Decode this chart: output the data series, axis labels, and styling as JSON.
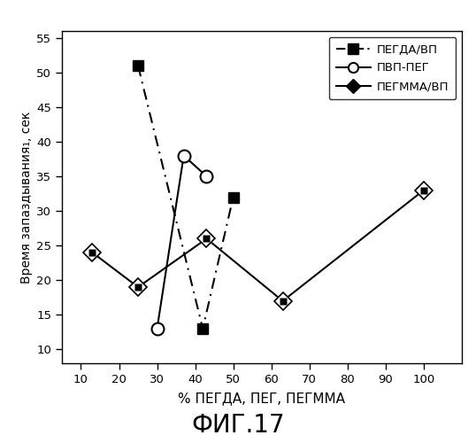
{
  "series": [
    {
      "label": "ПЕГДА/ВП",
      "x": [
        25,
        42,
        50
      ],
      "y": [
        51,
        13,
        32
      ],
      "color": "black",
      "linestyle": "--",
      "marker": "s",
      "markerfacecolor": "black",
      "markeredgecolor": "black",
      "markersize": 9
    },
    {
      "label": "ПВП-ПЕГ",
      "x": [
        30,
        37,
        43
      ],
      "y": [
        13,
        38,
        35
      ],
      "color": "black",
      "linestyle": "-",
      "marker": "o",
      "markerfacecolor": "white",
      "markeredgecolor": "black",
      "markersize": 10
    },
    {
      "label": "ПЕГММА/ВП",
      "x": [
        13,
        25,
        43,
        63,
        100
      ],
      "y": [
        24,
        19,
        26,
        17,
        33
      ],
      "color": "black",
      "linestyle": "-",
      "marker": "d",
      "markerfacecolor": "black",
      "markeredgecolor": "black",
      "markersize": 10
    }
  ],
  "xlabel": "% ПЕГДА, ПЕГ, ПЕГММА",
  "ylabel": "Время запаздывания₁, сек",
  "xlim": [
    5,
    110
  ],
  "ylim": [
    8,
    56
  ],
  "xticks": [
    10,
    20,
    30,
    40,
    50,
    60,
    70,
    80,
    90,
    100
  ],
  "yticks": [
    10,
    15,
    20,
    25,
    30,
    35,
    40,
    45,
    50,
    55
  ],
  "figure_label": "ФИГ.17",
  "background_color": "white"
}
